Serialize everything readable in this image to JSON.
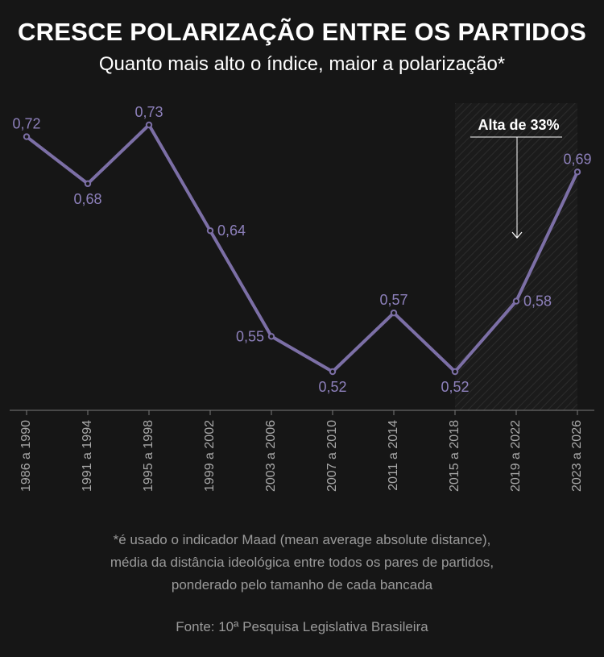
{
  "title": "CRESCE POLARIZAÇÃO ENTRE OS PARTIDOS",
  "subtitle": "Quanto mais alto o índice, maior a polarização*",
  "footnote_lines": [
    "*é usado o indicador Maad (mean average absolute distance),",
    "média da distância ideológica entre todos os pares de partidos,",
    "ponderado pelo tamanho de cada bancada"
  ],
  "source": "Fonte: 10ª Pesquisa Legislativa Brasileira",
  "colors": {
    "background": "#161616",
    "line": "#7c6fa6",
    "label": "#8d80bb",
    "axis": "#7a7a7a",
    "tick_label": "#a8a8a8",
    "annotation": "#ffffff"
  },
  "chart_data": {
    "type": "line",
    "categories": [
      "1986 a 1990",
      "1991 a 1994",
      "1995 a 1998",
      "1999 a 2002",
      "2003 a 2006",
      "2007 a 2010",
      "2011 a 2014",
      "2015 a 2018",
      "2019 a 2022",
      "2023 a 2026"
    ],
    "series": [
      {
        "values": [
          0.72,
          0.68,
          0.73,
          0.64,
          0.55,
          0.52,
          0.57,
          0.52,
          0.58,
          0.69
        ],
        "labels": [
          "0,72",
          "0,68",
          "0,73",
          "0,64",
          "0,55",
          "0,52",
          "0,57",
          "0,52",
          "0,58",
          "0,69"
        ]
      }
    ],
    "label_positions": [
      "above",
      "below",
      "above",
      "right",
      "left",
      "below",
      "above",
      "below",
      "right",
      "above"
    ],
    "ylim": [
      0.49,
      0.76
    ],
    "grid": false,
    "highlight": {
      "from_category": "2015 a 2018",
      "to_category": "2023 a 2026",
      "label": "Alta de 33%"
    }
  }
}
